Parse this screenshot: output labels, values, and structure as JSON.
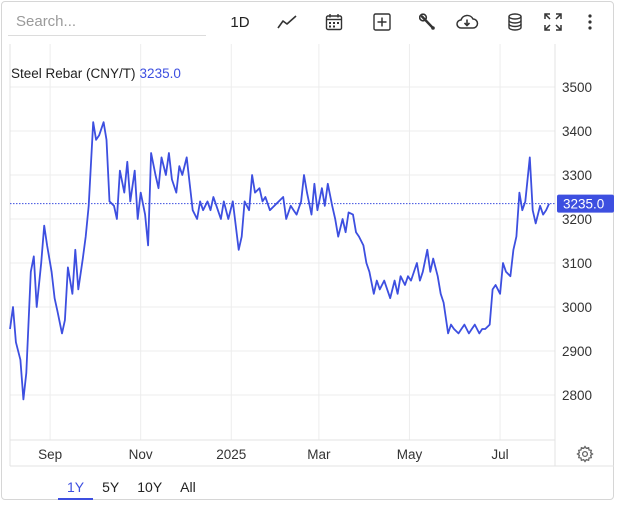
{
  "search": {
    "placeholder": "Search..."
  },
  "toolbar": {
    "interval_label": "1D",
    "icons": [
      "line-chart-icon",
      "calendar-icon",
      "add-icon",
      "wrench-icon",
      "cloud-download-icon",
      "database-icon",
      "expand-icon",
      "more-icon"
    ]
  },
  "range_tabs": [
    "1Y",
    "5Y",
    "10Y",
    "All"
  ],
  "active_range": "1Y",
  "colors": {
    "series": "#3d4fe0",
    "grid": "#ececec",
    "axis_text": "#333333",
    "active": "#3d4fe0"
  },
  "chart_data": {
    "type": "line",
    "title": "Steel Rebar (CNY/T)",
    "current_value": "3235.0",
    "x_start": "2024-08-05",
    "x_end": "2025-08-07",
    "x_ticks": [
      {
        "label": "Sep",
        "date": "2024-09-01"
      },
      {
        "label": "Nov",
        "date": "2024-11-01"
      },
      {
        "label": "2025",
        "date": "2025-01-01"
      },
      {
        "label": "Mar",
        "date": "2025-03-01"
      },
      {
        "label": "May",
        "date": "2025-05-01"
      },
      {
        "label": "Jul",
        "date": "2025-07-01"
      }
    ],
    "y_ticks": [
      2800,
      2900,
      3000,
      3100,
      3200,
      3300,
      3400,
      3500
    ],
    "ylim": [
      2700,
      3520
    ],
    "grid": true,
    "series": [
      {
        "points": [
          [
            "2024-08-05",
            2950
          ],
          [
            "2024-08-07",
            3000
          ],
          [
            "2024-08-09",
            2920
          ],
          [
            "2024-08-12",
            2880
          ],
          [
            "2024-08-14",
            2790
          ],
          [
            "2024-08-16",
            2850
          ],
          [
            "2024-08-19",
            3080
          ],
          [
            "2024-08-21",
            3115
          ],
          [
            "2024-08-23",
            3000
          ],
          [
            "2024-08-26",
            3100
          ],
          [
            "2024-08-28",
            3185
          ],
          [
            "2024-08-30",
            3140
          ],
          [
            "2024-09-02",
            3080
          ],
          [
            "2024-09-04",
            3020
          ],
          [
            "2024-09-06",
            2990
          ],
          [
            "2024-09-09",
            2940
          ],
          [
            "2024-09-11",
            2970
          ],
          [
            "2024-09-13",
            3090
          ],
          [
            "2024-09-16",
            3030
          ],
          [
            "2024-09-18",
            3130
          ],
          [
            "2024-09-20",
            3040
          ],
          [
            "2024-09-23",
            3110
          ],
          [
            "2024-09-25",
            3160
          ],
          [
            "2024-09-27",
            3230
          ],
          [
            "2024-09-30",
            3420
          ],
          [
            "2024-10-02",
            3380
          ],
          [
            "2024-10-04",
            3390
          ],
          [
            "2024-10-07",
            3420
          ],
          [
            "2024-10-09",
            3380
          ],
          [
            "2024-10-11",
            3240
          ],
          [
            "2024-10-14",
            3230
          ],
          [
            "2024-10-16",
            3200
          ],
          [
            "2024-10-18",
            3310
          ],
          [
            "2024-10-21",
            3260
          ],
          [
            "2024-10-23",
            3330
          ],
          [
            "2024-10-25",
            3240
          ],
          [
            "2024-10-28",
            3310
          ],
          [
            "2024-10-30",
            3200
          ],
          [
            "2024-11-01",
            3260
          ],
          [
            "2024-11-04",
            3210
          ],
          [
            "2024-11-06",
            3140
          ],
          [
            "2024-11-08",
            3350
          ],
          [
            "2024-11-11",
            3300
          ],
          [
            "2024-11-13",
            3270
          ],
          [
            "2024-11-15",
            3340
          ],
          [
            "2024-11-18",
            3300
          ],
          [
            "2024-11-20",
            3350
          ],
          [
            "2024-11-22",
            3290
          ],
          [
            "2024-11-25",
            3260
          ],
          [
            "2024-11-27",
            3320
          ],
          [
            "2024-11-29",
            3300
          ],
          [
            "2024-12-02",
            3340
          ],
          [
            "2024-12-04",
            3280
          ],
          [
            "2024-12-06",
            3220
          ],
          [
            "2024-12-09",
            3200
          ],
          [
            "2024-12-11",
            3240
          ],
          [
            "2024-12-13",
            3220
          ],
          [
            "2024-12-16",
            3240
          ],
          [
            "2024-12-18",
            3220
          ],
          [
            "2024-12-20",
            3250
          ],
          [
            "2024-12-23",
            3220
          ],
          [
            "2024-12-25",
            3200
          ],
          [
            "2024-12-27",
            3240
          ],
          [
            "2024-12-30",
            3200
          ],
          [
            "2025-01-02",
            3240
          ],
          [
            "2025-01-06",
            3130
          ],
          [
            "2025-01-08",
            3160
          ],
          [
            "2025-01-10",
            3240
          ],
          [
            "2025-01-13",
            3220
          ],
          [
            "2025-01-15",
            3300
          ],
          [
            "2025-01-17",
            3260
          ],
          [
            "2025-01-20",
            3270
          ],
          [
            "2025-01-22",
            3240
          ],
          [
            "2025-01-24",
            3250
          ],
          [
            "2025-01-27",
            3220
          ],
          [
            "2025-02-05",
            3250
          ],
          [
            "2025-02-07",
            3200
          ],
          [
            "2025-02-10",
            3230
          ],
          [
            "2025-02-12",
            3220
          ],
          [
            "2025-02-14",
            3210
          ],
          [
            "2025-02-17",
            3240
          ],
          [
            "2025-02-19",
            3300
          ],
          [
            "2025-02-21",
            3260
          ],
          [
            "2025-02-24",
            3210
          ],
          [
            "2025-02-26",
            3280
          ],
          [
            "2025-02-28",
            3220
          ],
          [
            "2025-03-03",
            3270
          ],
          [
            "2025-03-05",
            3230
          ],
          [
            "2025-03-07",
            3280
          ],
          [
            "2025-03-10",
            3230
          ],
          [
            "2025-03-12",
            3200
          ],
          [
            "2025-03-14",
            3160
          ],
          [
            "2025-03-17",
            3200
          ],
          [
            "2025-03-19",
            3170
          ],
          [
            "2025-03-21",
            3215
          ],
          [
            "2025-03-24",
            3210
          ],
          [
            "2025-03-26",
            3170
          ],
          [
            "2025-03-28",
            3160
          ],
          [
            "2025-03-31",
            3140
          ],
          [
            "2025-04-02",
            3100
          ],
          [
            "2025-04-04",
            3080
          ],
          [
            "2025-04-07",
            3030
          ],
          [
            "2025-04-09",
            3060
          ],
          [
            "2025-04-11",
            3040
          ],
          [
            "2025-04-14",
            3060
          ],
          [
            "2025-04-16",
            3040
          ],
          [
            "2025-04-18",
            3020
          ],
          [
            "2025-04-21",
            3060
          ],
          [
            "2025-04-23",
            3030
          ],
          [
            "2025-04-25",
            3070
          ],
          [
            "2025-04-28",
            3050
          ],
          [
            "2025-04-30",
            3070
          ],
          [
            "2025-05-02",
            3060
          ],
          [
            "2025-05-06",
            3100
          ],
          [
            "2025-05-08",
            3060
          ],
          [
            "2025-05-10",
            3080
          ],
          [
            "2025-05-13",
            3130
          ],
          [
            "2025-05-15",
            3080
          ],
          [
            "2025-05-17",
            3110
          ],
          [
            "2025-05-20",
            3070
          ],
          [
            "2025-05-22",
            3030
          ],
          [
            "2025-05-24",
            3010
          ],
          [
            "2025-05-27",
            2940
          ],
          [
            "2025-05-29",
            2960
          ],
          [
            "2025-05-31",
            2950
          ],
          [
            "2025-06-03",
            2940
          ],
          [
            "2025-06-05",
            2950
          ],
          [
            "2025-06-07",
            2960
          ],
          [
            "2025-06-10",
            2940
          ],
          [
            "2025-06-12",
            2950
          ],
          [
            "2025-06-14",
            2960
          ],
          [
            "2025-06-17",
            2940
          ],
          [
            "2025-06-19",
            2950
          ],
          [
            "2025-06-21",
            2950
          ],
          [
            "2025-06-24",
            2960
          ],
          [
            "2025-06-26",
            3040
          ],
          [
            "2025-06-28",
            3050
          ],
          [
            "2025-07-01",
            3030
          ],
          [
            "2025-07-03",
            3100
          ],
          [
            "2025-07-05",
            3080
          ],
          [
            "2025-07-08",
            3070
          ],
          [
            "2025-07-10",
            3130
          ],
          [
            "2025-07-12",
            3160
          ],
          [
            "2025-07-14",
            3260
          ],
          [
            "2025-07-16",
            3220
          ],
          [
            "2025-07-18",
            3240
          ],
          [
            "2025-07-21",
            3340
          ],
          [
            "2025-07-23",
            3220
          ],
          [
            "2025-07-25",
            3190
          ],
          [
            "2025-07-28",
            3230
          ],
          [
            "2025-07-30",
            3210
          ],
          [
            "2025-08-01",
            3220
          ],
          [
            "2025-08-03",
            3235
          ]
        ]
      }
    ]
  }
}
